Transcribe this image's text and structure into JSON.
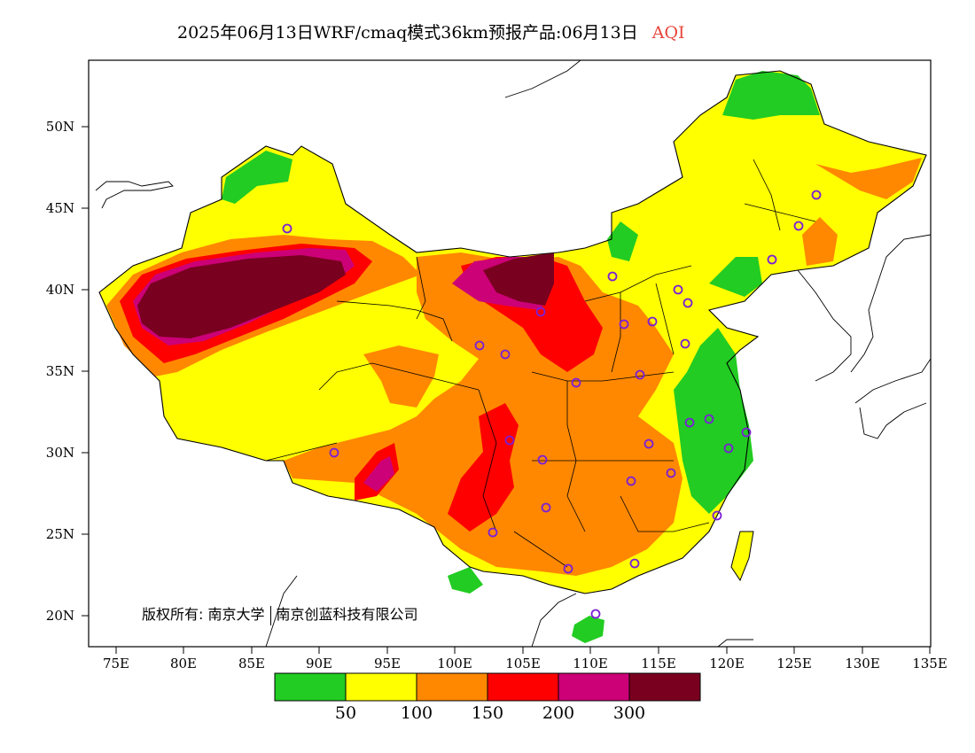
{
  "title": {
    "main": "2025年06月13日WRF/cmaq模式36km预报产品:06月13日",
    "variable": "AQI"
  },
  "copyright": {
    "owner_label": "版权所有:",
    "org1": "南京大学",
    "org2": "南京创蓝科技有限公司"
  },
  "axes": {
    "lat_labels": [
      "50N",
      "45N",
      "40N",
      "35N",
      "30N",
      "25N",
      "20N"
    ],
    "lon_labels": [
      "75E",
      "80E",
      "85E",
      "90E",
      "95E",
      "100E",
      "105E",
      "110E",
      "115E",
      "120E",
      "125E",
      "130E",
      "135E"
    ],
    "lon_range": [
      73,
      135
    ],
    "lat_range": [
      18,
      54
    ]
  },
  "colorbar": {
    "colors": [
      "#22cc22",
      "#ffff00",
      "#ff8800",
      "#ff0000",
      "#cc0077",
      "#7a0020"
    ],
    "labels": [
      "50",
      "100",
      "150",
      "200",
      "300"
    ]
  }
}
